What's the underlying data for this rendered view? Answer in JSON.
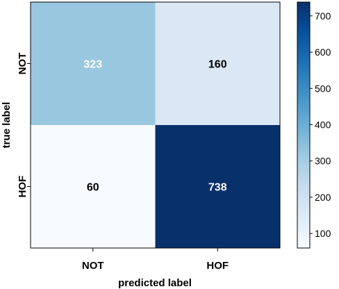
{
  "chart_data": {
    "type": "heatmap",
    "title": "",
    "xlabel": "predicted label",
    "ylabel": "true label",
    "x_categories": [
      "NOT",
      "HOF"
    ],
    "y_categories": [
      "NOT",
      "HOF"
    ],
    "values": [
      [
        323,
        160
      ],
      [
        60,
        738
      ]
    ],
    "colormap": "Blues",
    "colorbar": {
      "range": [
        60,
        738
      ],
      "ticks": [
        100,
        200,
        300,
        400,
        500,
        600,
        700
      ],
      "tick_labels": [
        "100",
        "200",
        "300",
        "400",
        "500",
        "600",
        "700"
      ]
    },
    "colors": {
      "light_text": "#ffffff",
      "dark_text": "#000000",
      "blues_stops": [
        "#f7fbff",
        "#deebf7",
        "#c6dbef",
        "#9ecae1",
        "#6baed6",
        "#4292c6",
        "#2171b5",
        "#08519c",
        "#08306b"
      ]
    },
    "grid": false
  }
}
